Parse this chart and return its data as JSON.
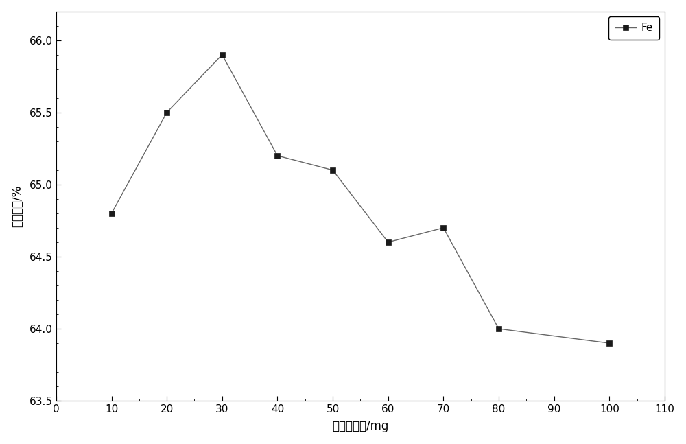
{
  "x": [
    10,
    20,
    30,
    40,
    50,
    60,
    70,
    80,
    100
  ],
  "y": [
    64.8,
    65.5,
    65.9,
    65.2,
    65.1,
    64.6,
    64.7,
    64.0,
    63.9
  ],
  "xlabel": "分散剂用量/mg",
  "ylabel": "质量分数/%",
  "legend_label": "Fe",
  "xlim": [
    0,
    110
  ],
  "ylim": [
    63.5,
    66.2
  ],
  "xticks": [
    0,
    10,
    20,
    30,
    40,
    50,
    60,
    70,
    80,
    90,
    100,
    110
  ],
  "yticks": [
    63.5,
    64.0,
    64.5,
    65.0,
    65.5,
    66.0
  ],
  "line_color": "#666666",
  "marker_color": "#1a1a1a",
  "marker": "s",
  "marker_size": 6,
  "line_width": 1.0,
  "bg_color": "#ffffff",
  "fig_bg_color": "#ffffff"
}
